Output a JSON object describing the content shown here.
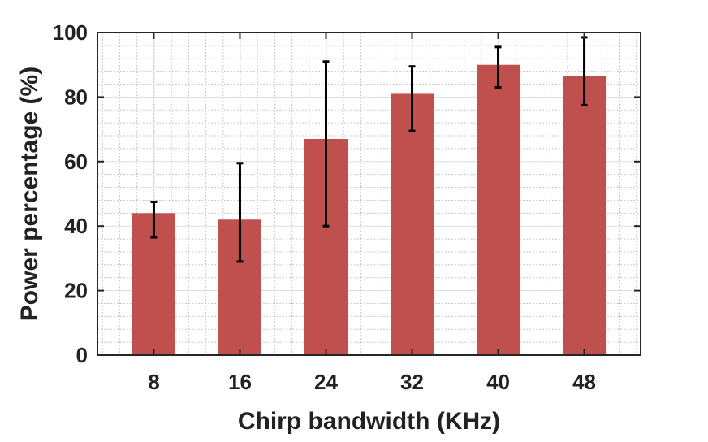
{
  "chart_data": {
    "type": "bar",
    "title": "",
    "xlabel": "Chirp bandwidth (KHz)",
    "ylabel": "Power percentage (%)",
    "categories": [
      "8",
      "16",
      "24",
      "32",
      "40",
      "48"
    ],
    "values": [
      44,
      42,
      67,
      81,
      90,
      86.5
    ],
    "error_low": [
      36.5,
      29,
      40,
      69.5,
      83,
      77.5
    ],
    "error_high": [
      47.5,
      59.5,
      91,
      89.5,
      95.5,
      98.5
    ],
    "ylim": [
      0,
      100
    ],
    "yticks": [
      "0",
      "20",
      "40",
      "60",
      "80",
      "100"
    ],
    "grid": "on, major and minor",
    "bar_color": "#c0504d",
    "error_bar_color": "#000000"
  }
}
